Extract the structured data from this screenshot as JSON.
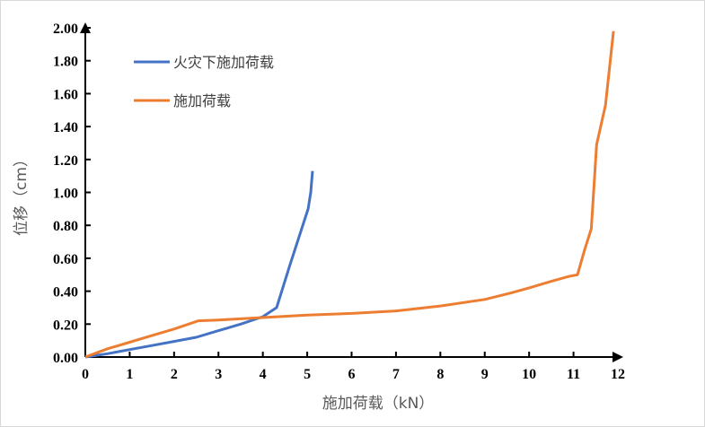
{
  "chart_data": {
    "type": "line",
    "title": "",
    "xlabel": "施加荷载（kN）",
    "ylabel": "位移（cm）",
    "xlim": [
      0,
      12
    ],
    "ylim": [
      0,
      2.0
    ],
    "xticks": [
      "0",
      "1",
      "2",
      "3",
      "4",
      "5",
      "6",
      "7",
      "8",
      "9",
      "10",
      "11",
      "12"
    ],
    "yticks": [
      "0.00",
      "0.20",
      "0.40",
      "0.60",
      "0.80",
      "1.00",
      "1.20",
      "1.40",
      "1.60",
      "1.80",
      "2.00"
    ],
    "grid": false,
    "legend_position": "top-left",
    "series": [
      {
        "name": "火灾下施加荷载",
        "color": "#4472C4",
        "x": [
          0,
          0.5,
          1,
          1.5,
          2,
          2.5,
          3,
          3.5,
          4,
          4.31,
          4.6,
          5.02,
          5.08,
          5.12
        ],
        "y": [
          0,
          0.02,
          0.045,
          0.07,
          0.095,
          0.12,
          0.16,
          0.2,
          0.245,
          0.3,
          0.55,
          0.9,
          1.0,
          1.13
        ]
      },
      {
        "name": "施加荷载",
        "color": "#ED7D31",
        "x": [
          0,
          0.5,
          1,
          1.5,
          2,
          2.55,
          3,
          4,
          5,
          6,
          7,
          8,
          9,
          9.6,
          10,
          10.5,
          10.9,
          11.09,
          11.25,
          11.4,
          11.52,
          11.72,
          11.9
        ],
        "y": [
          0,
          0.05,
          0.09,
          0.13,
          0.17,
          0.22,
          0.225,
          0.24,
          0.255,
          0.265,
          0.28,
          0.31,
          0.35,
          0.39,
          0.42,
          0.46,
          0.49,
          0.5,
          0.65,
          0.78,
          1.29,
          1.53,
          1.98
        ]
      }
    ]
  }
}
